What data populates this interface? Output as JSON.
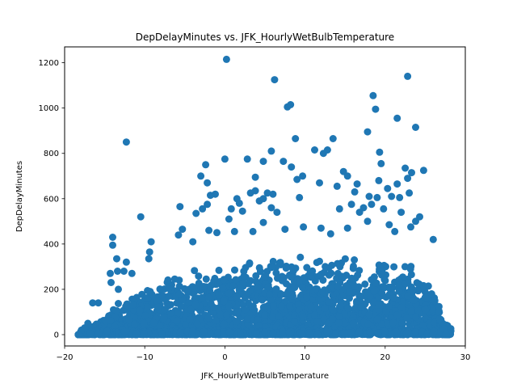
{
  "chart_data": {
    "type": "scatter",
    "title": "DepDelayMinutes vs. JFK_HourlyWetBulbTemperature",
    "xlabel": "JFK_HourlyWetBulbTemperature",
    "ylabel": "DepDelayMinutes",
    "xlim": [
      -20,
      30
    ],
    "ylim": [
      -50,
      1270
    ],
    "xticks": [
      -20,
      -10,
      0,
      10,
      20,
      30
    ],
    "yticks": [
      0,
      200,
      400,
      600,
      800,
      1000,
      1200
    ],
    "grid": false,
    "color": "#1f77b4",
    "dense_band": {
      "note_x": [
        -18,
        -17,
        -16,
        -15,
        -14,
        -13,
        -12,
        -11,
        -10,
        -9,
        -8,
        -7,
        -6,
        -5,
        -4,
        -3,
        -2,
        -1,
        0,
        1,
        2,
        3,
        4,
        5,
        6,
        7,
        8,
        9,
        10,
        11,
        12,
        13,
        14,
        15,
        16,
        17,
        18,
        19,
        20,
        21,
        22,
        23,
        24,
        25,
        26,
        27,
        28
      ],
      "upper": [
        0,
        30,
        60,
        90,
        120,
        150,
        170,
        190,
        210,
        230,
        250,
        260,
        270,
        280,
        290,
        300,
        310,
        320,
        330,
        340,
        340,
        345,
        350,
        350,
        350,
        350,
        350,
        350,
        350,
        350,
        350,
        350,
        350,
        350,
        350,
        350,
        350,
        350,
        350,
        350,
        340,
        320,
        300,
        260,
        200,
        120,
        30
      ]
    },
    "points": [
      {
        "x": 0.2,
        "y": 1215
      },
      {
        "x": 6.2,
        "y": 1125
      },
      {
        "x": 22.8,
        "y": 1140
      },
      {
        "x": 7.8,
        "y": 1005
      },
      {
        "x": 8.2,
        "y": 1015
      },
      {
        "x": 18.5,
        "y": 1055
      },
      {
        "x": 18.8,
        "y": 995
      },
      {
        "x": 21.5,
        "y": 955
      },
      {
        "x": 23.8,
        "y": 915
      },
      {
        "x": -12.3,
        "y": 850
      },
      {
        "x": 8.8,
        "y": 865
      },
      {
        "x": 13.5,
        "y": 865
      },
      {
        "x": 17.8,
        "y": 895
      },
      {
        "x": 11.2,
        "y": 815
      },
      {
        "x": 12.3,
        "y": 800
      },
      {
        "x": 12.8,
        "y": 815
      },
      {
        "x": 19.3,
        "y": 805
      },
      {
        "x": 5.8,
        "y": 810
      },
      {
        "x": 0.0,
        "y": 775
      },
      {
        "x": 2.8,
        "y": 775
      },
      {
        "x": 4.8,
        "y": 765
      },
      {
        "x": 7.3,
        "y": 765
      },
      {
        "x": 8.3,
        "y": 740
      },
      {
        "x": 19.5,
        "y": 755
      },
      {
        "x": -2.4,
        "y": 750
      },
      {
        "x": 11.8,
        "y": 670
      },
      {
        "x": 14.8,
        "y": 720
      },
      {
        "x": 15.3,
        "y": 700
      },
      {
        "x": 22.5,
        "y": 735
      },
      {
        "x": 24.8,
        "y": 725
      },
      {
        "x": 23.3,
        "y": 715
      },
      {
        "x": -3.0,
        "y": 700
      },
      {
        "x": -2.2,
        "y": 670
      },
      {
        "x": 3.8,
        "y": 695
      },
      {
        "x": 9.0,
        "y": 685
      },
      {
        "x": 9.7,
        "y": 700
      },
      {
        "x": 19.2,
        "y": 680
      },
      {
        "x": 21.5,
        "y": 665
      },
      {
        "x": 22.8,
        "y": 690
      },
      {
        "x": 16.5,
        "y": 665
      },
      {
        "x": 14.0,
        "y": 655
      },
      {
        "x": 20.3,
        "y": 645
      },
      {
        "x": 3.2,
        "y": 625
      },
      {
        "x": 3.8,
        "y": 635
      },
      {
        "x": 5.3,
        "y": 625
      },
      {
        "x": 6.0,
        "y": 620
      },
      {
        "x": 16.2,
        "y": 630
      },
      {
        "x": 20.8,
        "y": 610
      },
      {
        "x": 21.8,
        "y": 605
      },
      {
        "x": 23.0,
        "y": 625
      },
      {
        "x": -1.8,
        "y": 615
      },
      {
        "x": -1.2,
        "y": 620
      },
      {
        "x": 1.5,
        "y": 600
      },
      {
        "x": 9.3,
        "y": 605
      },
      {
        "x": 18.0,
        "y": 610
      },
      {
        "x": 19.0,
        "y": 605
      },
      {
        "x": -2.2,
        "y": 575
      },
      {
        "x": 1.8,
        "y": 580
      },
      {
        "x": 4.3,
        "y": 590
      },
      {
        "x": 4.8,
        "y": 600
      },
      {
        "x": 15.8,
        "y": 575
      },
      {
        "x": 17.3,
        "y": 560
      },
      {
        "x": 18.3,
        "y": 575
      },
      {
        "x": -5.6,
        "y": 565
      },
      {
        "x": -2.8,
        "y": 555
      },
      {
        "x": 0.8,
        "y": 555
      },
      {
        "x": 2.2,
        "y": 545
      },
      {
        "x": 5.8,
        "y": 560
      },
      {
        "x": 6.5,
        "y": 540
      },
      {
        "x": 14.3,
        "y": 555
      },
      {
        "x": 16.8,
        "y": 540
      },
      {
        "x": 19.8,
        "y": 555
      },
      {
        "x": 22.0,
        "y": 540
      },
      {
        "x": 23.8,
        "y": 500
      },
      {
        "x": 24.3,
        "y": 520
      },
      {
        "x": -10.5,
        "y": 520
      },
      {
        "x": -3.6,
        "y": 535
      },
      {
        "x": 0.5,
        "y": 510
      },
      {
        "x": 4.8,
        "y": 495
      },
      {
        "x": 7.5,
        "y": 465
      },
      {
        "x": 9.8,
        "y": 475
      },
      {
        "x": 12.0,
        "y": 470
      },
      {
        "x": 17.8,
        "y": 500
      },
      {
        "x": 20.5,
        "y": 485
      },
      {
        "x": 23.2,
        "y": 475
      },
      {
        "x": -5.3,
        "y": 465
      },
      {
        "x": -2.0,
        "y": 460
      },
      {
        "x": -1.0,
        "y": 450
      },
      {
        "x": 1.2,
        "y": 455
      },
      {
        "x": 3.5,
        "y": 455
      },
      {
        "x": 15.3,
        "y": 470
      },
      {
        "x": 21.2,
        "y": 455
      },
      {
        "x": -14.0,
        "y": 430
      },
      {
        "x": -5.8,
        "y": 440
      },
      {
        "x": -9.2,
        "y": 410
      },
      {
        "x": 13.2,
        "y": 445
      },
      {
        "x": 26.0,
        "y": 420
      },
      {
        "x": -14.0,
        "y": 395
      },
      {
        "x": -4.0,
        "y": 410
      },
      {
        "x": -9.4,
        "y": 365
      },
      {
        "x": -13.5,
        "y": 335
      },
      {
        "x": -12.3,
        "y": 320
      },
      {
        "x": -9.5,
        "y": 335
      },
      {
        "x": -15.8,
        "y": 140
      },
      {
        "x": -16.5,
        "y": 140
      },
      {
        "x": -14.3,
        "y": 270
      },
      {
        "x": -13.4,
        "y": 280
      },
      {
        "x": -12.6,
        "y": 280
      },
      {
        "x": -11.6,
        "y": 270
      },
      {
        "x": -14.2,
        "y": 230
      },
      {
        "x": -13.3,
        "y": 200
      },
      {
        "x": -17.1,
        "y": 50
      },
      {
        "x": -17.9,
        "y": 20
      },
      {
        "x": -18.3,
        "y": 0
      },
      {
        "x": -17.5,
        "y": 30
      },
      {
        "x": -16.8,
        "y": 5
      },
      {
        "x": 27.3,
        "y": 25
      },
      {
        "x": 28.0,
        "y": 5
      },
      {
        "x": 27.6,
        "y": 0
      },
      {
        "x": 26.8,
        "y": 70
      },
      {
        "x": 26.2,
        "y": 150
      },
      {
        "x": 25.8,
        "y": 180
      }
    ]
  }
}
